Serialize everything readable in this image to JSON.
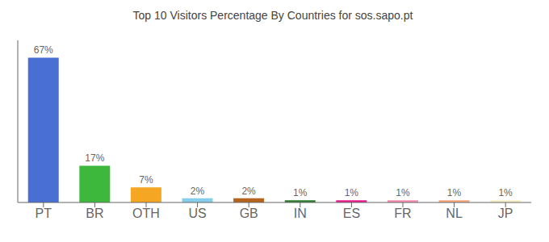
{
  "chart_data": {
    "type": "bar",
    "title": "Top 10 Visitors Percentage By Countries for sos.sapo.pt",
    "categories": [
      "PT",
      "BR",
      "OTH",
      "US",
      "GB",
      "IN",
      "ES",
      "FR",
      "NL",
      "JP"
    ],
    "values": [
      67,
      17,
      7,
      2,
      2,
      1,
      1,
      1,
      1,
      1
    ],
    "value_labels": [
      "67%",
      "17%",
      "7%",
      "2%",
      "2%",
      "1%",
      "1%",
      "1%",
      "1%",
      "1%"
    ],
    "data_labels": true,
    "colors": [
      "#4a6fd4",
      "#3db83d",
      "#f5a623",
      "#87ceeb",
      "#b5651d",
      "#2e7d2e",
      "#e91e8c",
      "#f48fb1",
      "#f4a87c",
      "#f5f0c8"
    ],
    "ylim": [
      0,
      75
    ],
    "grid": false,
    "tick_labels": "x"
  }
}
